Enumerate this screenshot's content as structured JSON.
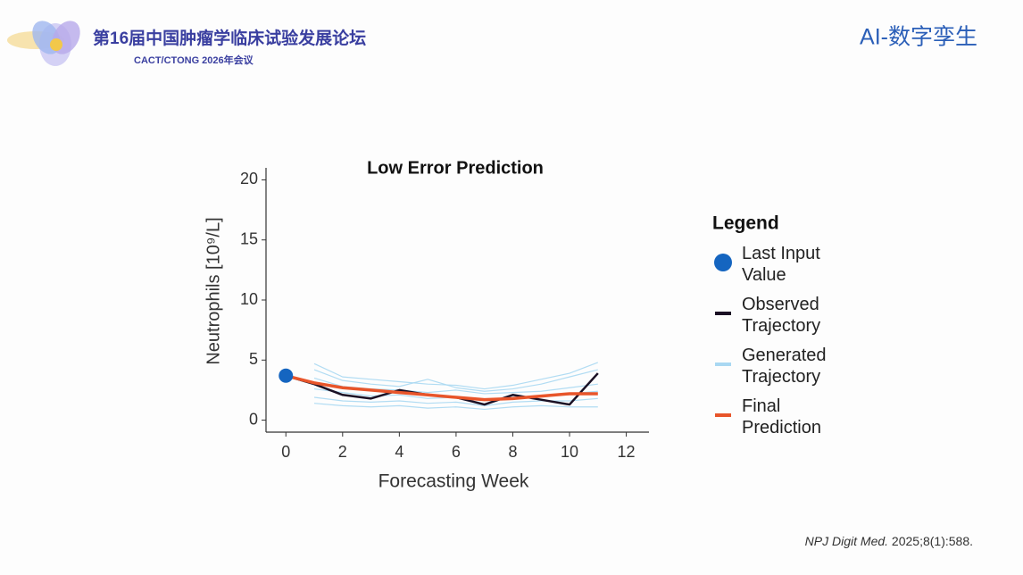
{
  "header": {
    "forum": "第16届中国肿瘤学临床试验发展论坛",
    "meeting": "CACT/CTONG 2026年会议",
    "section": "AI-数字孪生"
  },
  "citation": {
    "journal": "NPJ Digit Med.",
    "details": " 2025;8(1):588."
  },
  "chart_data": {
    "type": "line",
    "title": "Low Error Prediction",
    "x_label": "Forecasting Week",
    "y_label": "Neutrophils [10⁹/L]",
    "x": [
      0,
      1,
      2,
      3,
      4,
      5,
      6,
      7,
      8,
      9,
      10,
      11
    ],
    "xlim": [
      -0.7,
      12.8
    ],
    "xticks": [
      0,
      2,
      4,
      6,
      8,
      10,
      12
    ],
    "ylim": [
      -1,
      21
    ],
    "yticks": [
      0,
      5,
      10,
      15,
      20
    ],
    "legend_title": "Legend",
    "series": [
      {
        "name": "Last Input Value",
        "type": "scatter",
        "color": "#1565c0",
        "x": [
          0
        ],
        "values": [
          3.7
        ]
      },
      {
        "name": "Observed Trajectory",
        "color": "#1a1024",
        "values": [
          3.7,
          3.0,
          2.1,
          1.8,
          2.5,
          2.1,
          1.9,
          1.3,
          2.1,
          1.7,
          1.3,
          3.9
        ]
      },
      {
        "name": "Generated Trajectory",
        "color": "#a9d8f2",
        "trajectories": [
          [
            null,
            4.7,
            3.6,
            3.4,
            3.2,
            3.0,
            2.9,
            2.6,
            2.9,
            3.4,
            3.9,
            4.8
          ],
          [
            null,
            4.2,
            3.3,
            3.0,
            2.8,
            3.4,
            2.7,
            2.4,
            2.6,
            3.0,
            3.6,
            4.2
          ],
          [
            null,
            3.5,
            2.8,
            2.6,
            2.5,
            2.3,
            2.5,
            2.2,
            2.3,
            2.4,
            2.7,
            3.0
          ],
          [
            null,
            2.6,
            2.3,
            2.0,
            2.1,
            1.8,
            1.9,
            1.7,
            1.9,
            2.0,
            2.2,
            2.4
          ],
          [
            null,
            1.9,
            1.6,
            1.5,
            1.6,
            1.4,
            1.5,
            1.2,
            1.5,
            1.6,
            1.6,
            1.8
          ],
          [
            null,
            1.4,
            1.2,
            1.1,
            1.2,
            1.0,
            1.1,
            0.9,
            1.1,
            1.2,
            1.1,
            1.1
          ]
        ]
      },
      {
        "name": "Final Prediction",
        "color": "#e8552a",
        "values": [
          3.7,
          3.1,
          2.7,
          2.5,
          2.3,
          2.1,
          1.9,
          1.7,
          1.8,
          2.0,
          2.2,
          2.2
        ]
      }
    ]
  }
}
